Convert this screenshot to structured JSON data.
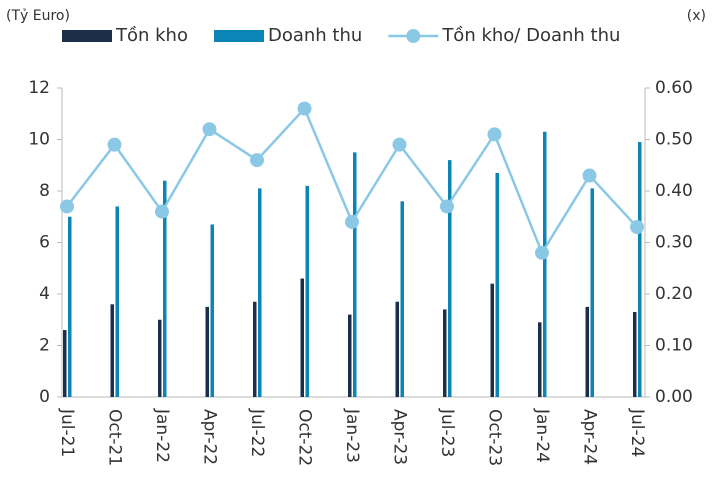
{
  "chart_data": {
    "type": "bar_line",
    "y_unit": "(Tỷ Euro)",
    "y2_unit": "(x)",
    "categories": [
      "Jul-21",
      "Oct-21",
      "Jan-22",
      "Apr-22",
      "Jul-22",
      "Oct-22",
      "Jan-23",
      "Apr-23",
      "Jul-23",
      "Oct-23",
      "Jan-24",
      "Apr-24",
      "Jul-24"
    ],
    "series": [
      {
        "name": "Tồn kho",
        "color": "#1b2f4b",
        "values": [
          2.6,
          3.6,
          3.0,
          3.5,
          3.7,
          4.6,
          3.2,
          3.7,
          3.4,
          4.4,
          2.9,
          3.5,
          3.3
        ]
      },
      {
        "name": "Doanh thu",
        "color": "#0a85b5",
        "values": [
          7.0,
          7.4,
          8.4,
          6.7,
          8.1,
          8.2,
          9.5,
          7.6,
          9.2,
          8.7,
          10.3,
          8.1,
          9.9
        ]
      },
      {
        "name": "Tồn kho/ Doanh thu",
        "color": "#8bc8e6",
        "axis": "y2",
        "values": [
          0.37,
          0.49,
          0.36,
          0.52,
          0.46,
          0.56,
          0.34,
          0.49,
          0.37,
          0.51,
          0.28,
          0.43,
          0.33
        ]
      }
    ],
    "ylim": [
      0,
      12
    ],
    "yticks": [
      0,
      2,
      4,
      6,
      8,
      10,
      12
    ],
    "y2lim": [
      0,
      0.6
    ],
    "y2ticks": [
      {
        "value": 0,
        "label": "0.00"
      },
      {
        "value": 0.1,
        "label": "0.10"
      },
      {
        "value": 0.2,
        "label": "0.20"
      },
      {
        "value": 0.3,
        "label": "0.30"
      },
      {
        "value": 0.4,
        "label": "0.40"
      },
      {
        "value": 0.5,
        "label": "0.50"
      },
      {
        "value": 0.6,
        "label": "0.60"
      }
    ],
    "grid": false
  }
}
